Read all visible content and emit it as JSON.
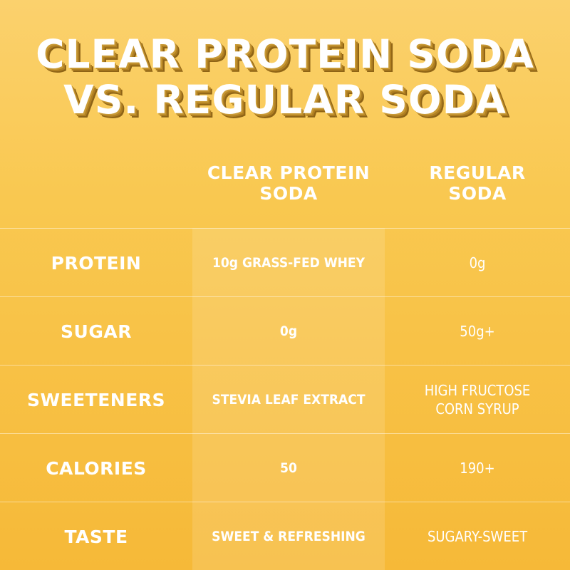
{
  "title": {
    "line1": "CLEAR PROTEIN SODA",
    "line2": "VS. REGULAR SODA"
  },
  "columns": {
    "clear": {
      "line1": "CLEAR PROTEIN",
      "line2": "SODA"
    },
    "regular": {
      "line1": "REGULAR",
      "line2": "SODA"
    }
  },
  "rows": [
    {
      "label": "PROTEIN",
      "clear": "10g GRASS-FED WHEY",
      "regular": "0g"
    },
    {
      "label": "SUGAR",
      "clear": "0g",
      "regular": "50g+"
    },
    {
      "label": "SWEETENERS",
      "clear": "STEVIA LEAF EXTRACT",
      "regular": "HIGH FRUCTOSE\nCORN SYRUP"
    },
    {
      "label": "CALORIES",
      "clear": "50",
      "regular": "190+"
    },
    {
      "label": "TASTE",
      "clear": "SWEET & REFRESHING",
      "regular": "SUGARY-SWEET"
    }
  ],
  "colors": {
    "background_top": "#fbd16d",
    "background_bottom": "#f6b938",
    "title_shadow": "#b07f22",
    "text": "#ffffff"
  }
}
